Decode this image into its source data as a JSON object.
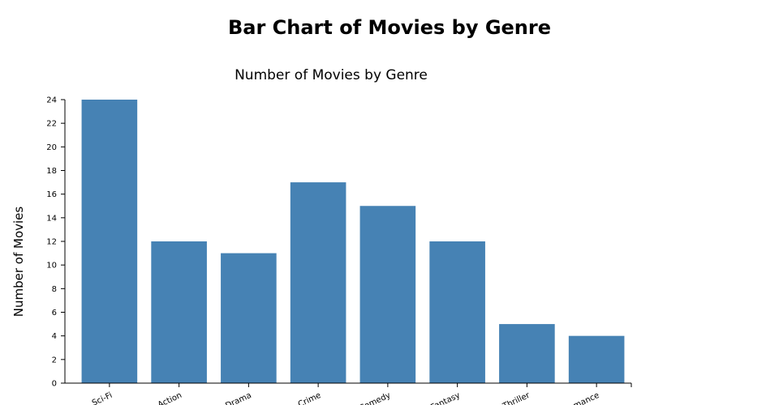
{
  "page": {
    "title": "Bar Chart of Movies by Genre"
  },
  "chart_data": {
    "type": "bar",
    "title": "Number of Movies by Genre",
    "xlabel": "",
    "ylabel": "Number of Movies",
    "categories": [
      "Sci-Fi",
      "Action",
      "Drama",
      "Crime",
      "Comedy",
      "Fantasy",
      "Thriller",
      "Romance"
    ],
    "values": [
      24,
      12,
      11,
      17,
      15,
      12,
      5,
      4
    ],
    "ylim": [
      0,
      24
    ],
    "yticks": [
      0,
      2,
      4,
      6,
      8,
      10,
      12,
      14,
      16,
      18,
      20,
      22,
      24
    ],
    "bar_color": "#4682b4",
    "grid": false
  }
}
